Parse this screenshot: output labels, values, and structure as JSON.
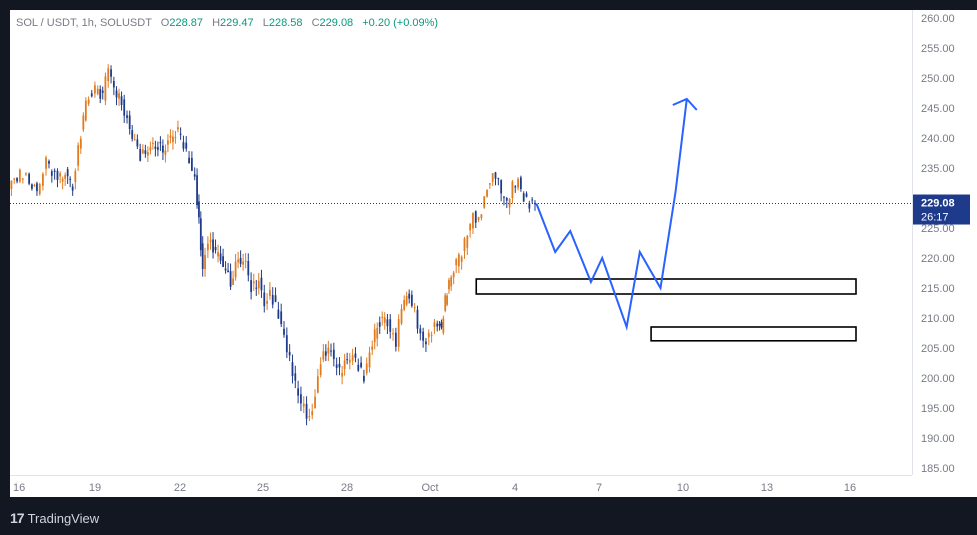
{
  "legend": {
    "symbol": "SOL / USDT, 1h, SOLUSDT",
    "o_label": "O",
    "o_value": "228.87",
    "h_label": "H",
    "h_value": "229.47",
    "l_label": "L",
    "l_value": "228.58",
    "c_label": "C",
    "c_value": "229.08",
    "change": "+0.20 (+0.09%)"
  },
  "price_tag": {
    "price": "229.08",
    "countdown": "26:17"
  },
  "branding": {
    "logo_text": "17",
    "name": "TradingView"
  },
  "colors": {
    "up": "#089981",
    "down": "#f23645",
    "candle_dark": "#1e3a8a",
    "candle_orange": "#e07b1f",
    "projection": "#2962ff",
    "axis_text": "#787b86",
    "price_tag_bg": "#1e3a8a"
  },
  "chart_data": {
    "type": "candlestick",
    "ylim": [
      185,
      260
    ],
    "y_ticks": [
      185,
      190,
      195,
      200,
      205,
      210,
      215,
      220,
      225,
      230,
      235,
      240,
      245,
      250,
      255,
      260
    ],
    "y_tick_labels": [
      "185.00",
      "190.00",
      "195.00",
      "200.00",
      "205.00",
      "210.00",
      "215.00",
      "220.00",
      "225.00",
      "230.00",
      "235.00",
      "240.00",
      "245.00",
      "250.00",
      "255.00",
      "260.00"
    ],
    "x_ticks": [
      "16",
      "19",
      "22",
      "25",
      "28",
      "Oct",
      "4",
      "7",
      "10",
      "13",
      "16"
    ],
    "current_price": 229.08,
    "price_path": [
      {
        "x": 0,
        "y": 232
      },
      {
        "x": 0.6,
        "y": 234
      },
      {
        "x": 1.1,
        "y": 233
      },
      {
        "x": 1.5,
        "y": 231
      },
      {
        "x": 2.0,
        "y": 236
      },
      {
        "x": 2.6,
        "y": 233
      },
      {
        "x": 3.0,
        "y": 234
      },
      {
        "x": 3.4,
        "y": 232
      },
      {
        "x": 3.7,
        "y": 238
      },
      {
        "x": 4.1,
        "y": 246
      },
      {
        "x": 4.6,
        "y": 248
      },
      {
        "x": 5.0,
        "y": 247
      },
      {
        "x": 5.3,
        "y": 252
      },
      {
        "x": 5.6,
        "y": 248
      },
      {
        "x": 6.0,
        "y": 246
      },
      {
        "x": 6.3,
        "y": 243
      },
      {
        "x": 6.7,
        "y": 239
      },
      {
        "x": 7.0,
        "y": 237
      },
      {
        "x": 7.4,
        "y": 238
      },
      {
        "x": 7.8,
        "y": 239
      },
      {
        "x": 8.2,
        "y": 238
      },
      {
        "x": 8.6,
        "y": 240
      },
      {
        "x": 9.0,
        "y": 241
      },
      {
        "x": 9.3,
        "y": 239
      },
      {
        "x": 9.6,
        "y": 236
      },
      {
        "x": 9.9,
        "y": 233
      },
      {
        "x": 10.1,
        "y": 226
      },
      {
        "x": 10.3,
        "y": 218
      },
      {
        "x": 10.6,
        "y": 223
      },
      {
        "x": 11.0,
        "y": 221
      },
      {
        "x": 11.4,
        "y": 219
      },
      {
        "x": 11.8,
        "y": 216
      },
      {
        "x": 12.2,
        "y": 220
      },
      {
        "x": 12.6,
        "y": 219
      },
      {
        "x": 12.9,
        "y": 215
      },
      {
        "x": 13.3,
        "y": 216
      },
      {
        "x": 13.6,
        "y": 212
      },
      {
        "x": 13.9,
        "y": 214
      },
      {
        "x": 14.2,
        "y": 212
      },
      {
        "x": 14.5,
        "y": 209
      },
      {
        "x": 14.8,
        "y": 205
      },
      {
        "x": 15.1,
        "y": 201
      },
      {
        "x": 15.4,
        "y": 197
      },
      {
        "x": 15.7,
        "y": 195
      },
      {
        "x": 16.0,
        "y": 193
      },
      {
        "x": 16.3,
        "y": 197
      },
      {
        "x": 16.6,
        "y": 203
      },
      {
        "x": 17.0,
        "y": 205
      },
      {
        "x": 17.3,
        "y": 203
      },
      {
        "x": 17.6,
        "y": 201
      },
      {
        "x": 18.0,
        "y": 203
      },
      {
        "x": 18.3,
        "y": 204
      },
      {
        "x": 18.6,
        "y": 202
      },
      {
        "x": 18.9,
        "y": 200
      },
      {
        "x": 19.2,
        "y": 204
      },
      {
        "x": 19.6,
        "y": 209
      },
      {
        "x": 20.0,
        "y": 210
      },
      {
        "x": 20.3,
        "y": 208
      },
      {
        "x": 20.6,
        "y": 206
      },
      {
        "x": 20.9,
        "y": 212
      },
      {
        "x": 21.3,
        "y": 214
      },
      {
        "x": 21.6,
        "y": 211
      },
      {
        "x": 21.9,
        "y": 207
      },
      {
        "x": 22.2,
        "y": 206
      },
      {
        "x": 22.5,
        "y": 208
      },
      {
        "x": 22.8,
        "y": 209
      },
      {
        "x": 23.0,
        "y": 208
      },
      {
        "x": 23.2,
        "y": 213
      },
      {
        "x": 23.4,
        "y": 216
      },
      {
        "x": 23.8,
        "y": 219
      },
      {
        "x": 24.1,
        "y": 221
      },
      {
        "x": 24.4,
        "y": 224
      },
      {
        "x": 24.7,
        "y": 227
      },
      {
        "x": 25.0,
        "y": 226
      },
      {
        "x": 25.3,
        "y": 230
      },
      {
        "x": 25.6,
        "y": 233
      },
      {
        "x": 25.9,
        "y": 234
      },
      {
        "x": 26.2,
        "y": 231
      },
      {
        "x": 26.5,
        "y": 229
      },
      {
        "x": 26.8,
        "y": 232
      },
      {
        "x": 27.1,
        "y": 233
      },
      {
        "x": 27.4,
        "y": 230
      },
      {
        "x": 27.7,
        "y": 229
      },
      {
        "x": 28.0,
        "y": 229.08
      }
    ],
    "zones": [
      {
        "name": "upper-zone",
        "x_from": 24.8,
        "x_to": 45.0,
        "y_low": 214.0,
        "y_high": 216.5
      },
      {
        "name": "lower-zone",
        "x_from": 34.1,
        "x_to": 45.0,
        "y_low": 206.2,
        "y_high": 208.5
      }
    ],
    "projection": [
      {
        "x": 28.0,
        "y": 229.08
      },
      {
        "x": 29.0,
        "y": 221
      },
      {
        "x": 29.8,
        "y": 224.5
      },
      {
        "x": 30.9,
        "y": 216
      },
      {
        "x": 31.5,
        "y": 220
      },
      {
        "x": 32.8,
        "y": 208.5
      },
      {
        "x": 33.5,
        "y": 221
      },
      {
        "x": 34.6,
        "y": 215
      },
      {
        "x": 35.4,
        "y": 231
      },
      {
        "x": 36.0,
        "y": 246.5
      }
    ]
  }
}
